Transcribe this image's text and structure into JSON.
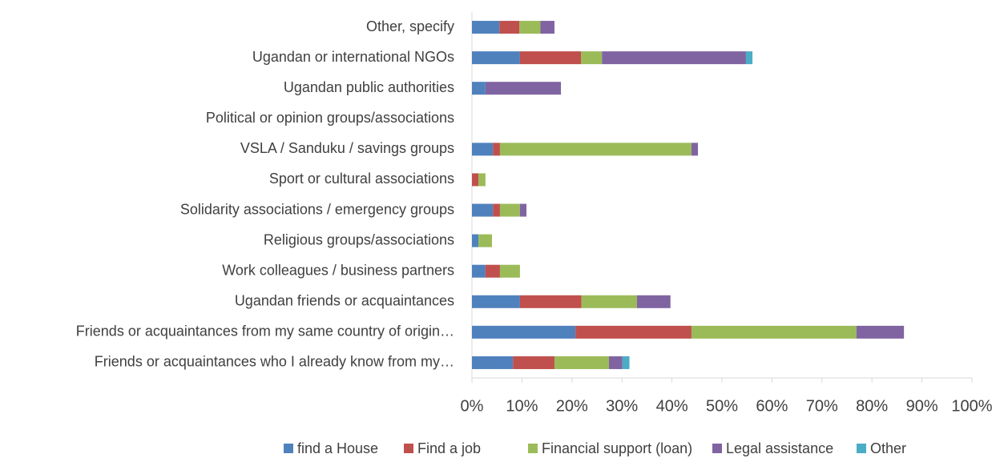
{
  "chart_data": {
    "type": "bar",
    "orientation": "horizontal",
    "stacked": true,
    "categories": [
      "Other, specify",
      "Ugandan or international NGOs",
      "Ugandan public authorities",
      "Political or opinion groups/associations",
      "VSLA / Sanduku / savings groups",
      "Sport or cultural associations",
      "Solidarity associations / emergency groups",
      "Religious groups/associations",
      "Work colleagues / business partners",
      "Ugandan friends or acquaintances",
      "Friends or acquaintances from my same country of origin…",
      "Friends or acquaintances who I already know from my…"
    ],
    "series": [
      {
        "name": "find a House",
        "color": "#4f81bd",
        "values": [
          5.5,
          9.6,
          2.7,
          0,
          4.2,
          0,
          4.2,
          1.3,
          2.7,
          9.6,
          20.7,
          8.2
        ]
      },
      {
        "name": "Find a job",
        "color": "#c0504d",
        "values": [
          4.0,
          12.2,
          0,
          0,
          1.4,
          1.3,
          1.4,
          0,
          2.9,
          12.3,
          23.2,
          8.3
        ]
      },
      {
        "name": "Financial support (loan)",
        "color": "#9bbb59",
        "values": [
          4.2,
          4.2,
          0,
          0,
          38.3,
          1.4,
          4.0,
          2.7,
          4.0,
          11.1,
          33.0,
          10.9
        ]
      },
      {
        "name": "Legal assistance",
        "color": "#8064a2",
        "values": [
          2.8,
          28.8,
          15.1,
          0,
          1.3,
          0,
          1.3,
          0,
          0,
          6.7,
          9.5,
          2.7
        ]
      },
      {
        "name": "Other",
        "color": "#4bacc6",
        "values": [
          0,
          1.3,
          0,
          0,
          0,
          0,
          0,
          0,
          0,
          0,
          0,
          1.4
        ]
      }
    ],
    "xlim": [
      0,
      100
    ],
    "xticks": [
      {
        "value": 0,
        "label": "0%"
      },
      {
        "value": 10,
        "label": "10%"
      },
      {
        "value": 20,
        "label": "20%"
      },
      {
        "value": 30,
        "label": "30%"
      },
      {
        "value": 40,
        "label": "40%"
      },
      {
        "value": 50,
        "label": "50%"
      },
      {
        "value": 60,
        "label": "60%"
      },
      {
        "value": 70,
        "label": "70%"
      },
      {
        "value": 80,
        "label": "80%"
      },
      {
        "value": 90,
        "label": "90%"
      },
      {
        "value": 100,
        "label": "100%"
      }
    ],
    "legend": "bottom"
  }
}
